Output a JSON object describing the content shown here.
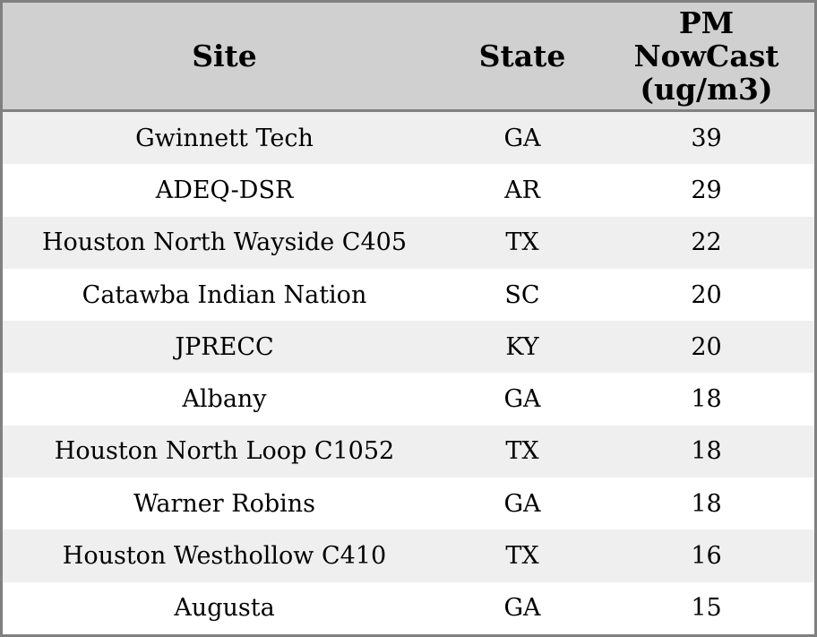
{
  "colors": {
    "outer_border": "#808080",
    "header_background": "#d0d0d0",
    "row_stripe_background": "#efefef",
    "row_background": "#ffffff",
    "text": "#000000"
  },
  "table": {
    "columns": [
      {
        "key": "site",
        "label": "Site"
      },
      {
        "key": "state",
        "label": "State"
      },
      {
        "key": "pm_nowcast",
        "label": "PM\nNowCast\n(ug/m3)"
      }
    ],
    "rows": [
      {
        "site": "Gwinnett Tech",
        "state": "GA",
        "pm_nowcast": "39"
      },
      {
        "site": "ADEQ-DSR",
        "state": "AR",
        "pm_nowcast": "29"
      },
      {
        "site": "Houston North Wayside C405",
        "state": "TX",
        "pm_nowcast": "22"
      },
      {
        "site": "Catawba Indian Nation",
        "state": "SC",
        "pm_nowcast": "20"
      },
      {
        "site": "JPRECC",
        "state": "KY",
        "pm_nowcast": "20"
      },
      {
        "site": "Albany",
        "state": "GA",
        "pm_nowcast": "18"
      },
      {
        "site": "Houston North Loop C1052",
        "state": "TX",
        "pm_nowcast": "18"
      },
      {
        "site": "Warner Robins",
        "state": "GA",
        "pm_nowcast": "18"
      },
      {
        "site": "Houston Westhollow C410",
        "state": "TX",
        "pm_nowcast": "16"
      },
      {
        "site": "Augusta",
        "state": "GA",
        "pm_nowcast": "15"
      }
    ]
  },
  "chart_data": {
    "type": "table",
    "title": "",
    "columns": [
      "Site",
      "State",
      "PM NowCast (ug/m3)"
    ],
    "rows": [
      [
        "Gwinnett Tech",
        "GA",
        39
      ],
      [
        "ADEQ-DSR",
        "AR",
        29
      ],
      [
        "Houston North Wayside C405",
        "TX",
        22
      ],
      [
        "Catawba Indian Nation",
        "SC",
        20
      ],
      [
        "JPRECC",
        "KY",
        20
      ],
      [
        "Albany",
        "GA",
        18
      ],
      [
        "Houston North Loop C1052",
        "TX",
        18
      ],
      [
        "Warner Robins",
        "GA",
        18
      ],
      [
        "Houston Westhollow C410",
        "TX",
        16
      ],
      [
        "Augusta",
        "GA",
        15
      ]
    ]
  }
}
